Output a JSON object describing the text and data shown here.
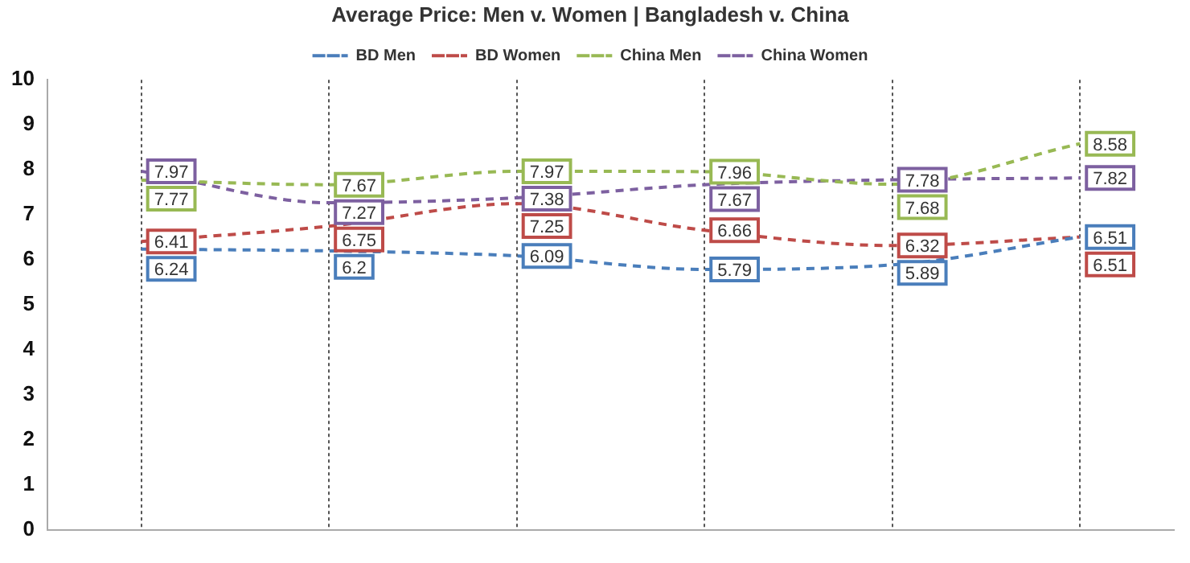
{
  "chart_data": {
    "type": "line",
    "title": "Average Price: Men v. Women | Bangladesh v. China",
    "categories": [
      null,
      null,
      null,
      null,
      null,
      null
    ],
    "series": [
      {
        "name": "BD Men",
        "color": "#4a7ebb",
        "values": [
          6.24,
          6.2,
          6.09,
          5.79,
          5.89,
          6.51
        ]
      },
      {
        "name": "BD Women",
        "color": "#be4b48",
        "values": [
          6.41,
          6.75,
          7.25,
          6.66,
          6.32,
          6.51
        ]
      },
      {
        "name": "China Men",
        "color": "#98b954",
        "values": [
          7.77,
          7.67,
          7.97,
          7.96,
          7.68,
          8.58
        ]
      },
      {
        "name": "China Women",
        "color": "#7d60a0",
        "values": [
          7.97,
          7.27,
          7.38,
          7.67,
          7.78,
          7.82
        ]
      }
    ],
    "ylim": [
      0,
      10
    ],
    "yticks": [
      0,
      1,
      2,
      3,
      4,
      5,
      6,
      7,
      8,
      9,
      10
    ],
    "grid": "x",
    "legend": "top",
    "line_style": "dashed",
    "marker": "none",
    "data_labels": true
  }
}
